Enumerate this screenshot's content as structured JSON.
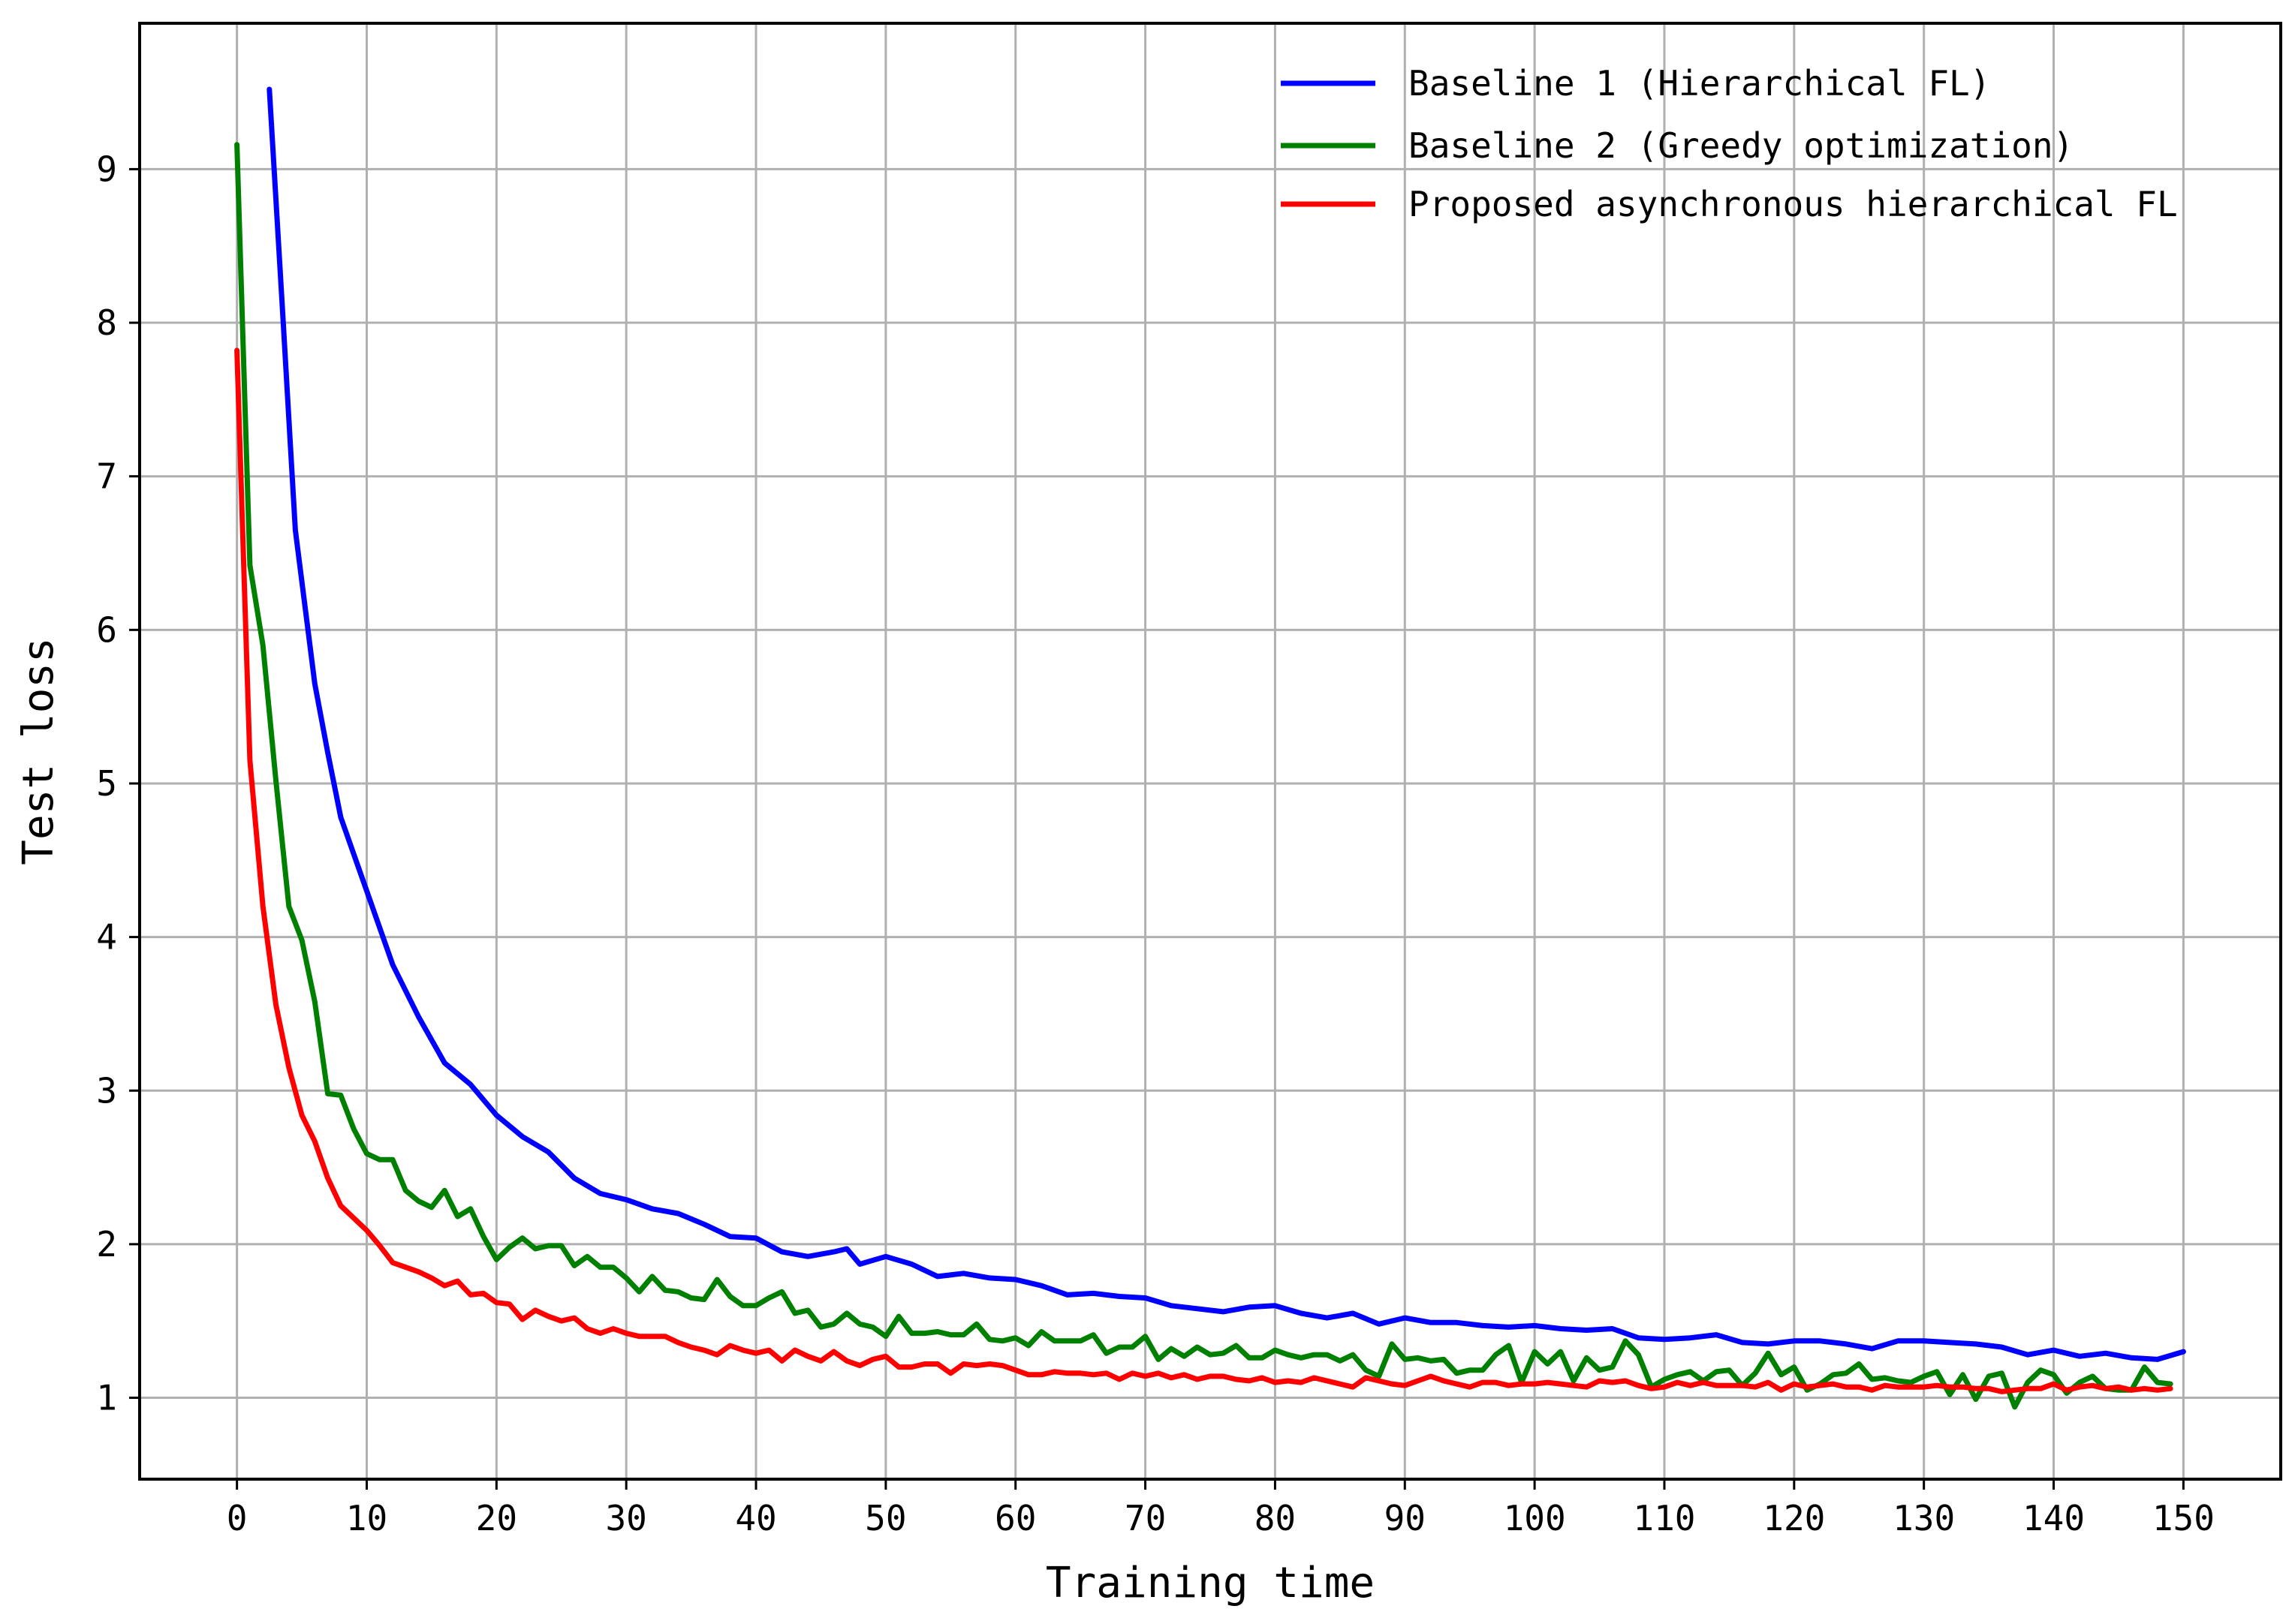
{
  "chart_data": {
    "type": "line",
    "xlabel": "Training time",
    "ylabel": "Test loss",
    "xlim": [
      -7.5,
      157.5
    ],
    "ylim": [
      0.47,
      9.95
    ],
    "xticks": [
      0,
      10,
      20,
      30,
      40,
      50,
      60,
      70,
      80,
      90,
      100,
      110,
      120,
      130,
      140,
      150
    ],
    "yticks": [
      1,
      2,
      3,
      4,
      5,
      6,
      7,
      8,
      9
    ],
    "grid": true,
    "legend_position": "top-right",
    "series": [
      {
        "name": "Baseline 1 (Hierarchical FL)",
        "color": "#0000ff",
        "x": [
          2.5,
          3.5,
          4.5,
          6,
          7,
          8,
          10,
          12,
          14,
          16,
          18,
          20,
          22,
          24,
          26,
          28,
          30,
          32,
          34,
          36,
          38,
          40,
          42,
          44,
          46,
          47,
          48,
          50,
          52,
          54,
          56,
          58,
          60,
          62,
          64,
          66,
          68,
          70,
          72,
          74,
          76,
          78,
          80,
          82,
          84,
          86,
          88,
          90,
          92,
          94,
          96,
          98,
          100,
          102,
          104,
          106,
          108,
          110,
          112,
          114,
          116,
          118,
          120,
          122,
          124,
          126,
          128,
          130,
          132,
          134,
          136,
          138,
          140,
          142,
          144,
          146,
          148,
          150
        ],
        "y": [
          9.52,
          8.1,
          6.65,
          5.65,
          5.2,
          4.78,
          4.3,
          3.82,
          3.48,
          3.18,
          3.04,
          2.84,
          2.7,
          2.6,
          2.43,
          2.33,
          2.29,
          2.23,
          2.2,
          2.13,
          2.05,
          2.04,
          1.95,
          1.92,
          1.95,
          1.97,
          1.87,
          1.92,
          1.87,
          1.79,
          1.81,
          1.78,
          1.77,
          1.73,
          1.67,
          1.68,
          1.66,
          1.65,
          1.6,
          1.58,
          1.56,
          1.59,
          1.6,
          1.55,
          1.52,
          1.55,
          1.48,
          1.52,
          1.49,
          1.49,
          1.47,
          1.46,
          1.47,
          1.45,
          1.44,
          1.45,
          1.39,
          1.38,
          1.39,
          1.41,
          1.36,
          1.35,
          1.37,
          1.37,
          1.35,
          1.32,
          1.37,
          1.37,
          1.36,
          1.35,
          1.33,
          1.28,
          1.31,
          1.27,
          1.29,
          1.26,
          1.25,
          1.3
        ]
      },
      {
        "name": "Baseline 2 (Greedy optimization)",
        "color": "#008000",
        "x": [
          0,
          1,
          2,
          3,
          4,
          5,
          6,
          7,
          8,
          9,
          10,
          11,
          12,
          13,
          14,
          15,
          16,
          17,
          18,
          19,
          20,
          21,
          22,
          23,
          24,
          25,
          26,
          27,
          28,
          29,
          30,
          31,
          32,
          33,
          34,
          35,
          36,
          37,
          38,
          39,
          40,
          41,
          42,
          43,
          44,
          45,
          46,
          47,
          48,
          49,
          50,
          51,
          52,
          53,
          54,
          55,
          56,
          57,
          58,
          59,
          60,
          61,
          62,
          63,
          64,
          65,
          66,
          67,
          68,
          69,
          70,
          71,
          72,
          73,
          74,
          75,
          76,
          77,
          78,
          79,
          80,
          81,
          82,
          83,
          84,
          85,
          86,
          87,
          88,
          89,
          90,
          91,
          92,
          93,
          94,
          95,
          96,
          97,
          98,
          99,
          100,
          101,
          102,
          103,
          104,
          105,
          106,
          107,
          108,
          109,
          110,
          111,
          112,
          113,
          114,
          115,
          116,
          117,
          118,
          119,
          120,
          121,
          122,
          123,
          124,
          125,
          126,
          127,
          128,
          129,
          130,
          131,
          132,
          133,
          134,
          135,
          136,
          137,
          138,
          139,
          140,
          141,
          142,
          143,
          144,
          145,
          146,
          147,
          148,
          149
        ],
        "y": [
          9.16,
          6.42,
          5.9,
          5.02,
          4.2,
          3.98,
          3.58,
          2.98,
          2.97,
          2.75,
          2.59,
          2.55,
          2.55,
          2.35,
          2.28,
          2.24,
          2.35,
          2.18,
          2.23,
          2.05,
          1.9,
          1.98,
          2.04,
          1.97,
          1.99,
          1.99,
          1.86,
          1.92,
          1.85,
          1.85,
          1.78,
          1.69,
          1.79,
          1.7,
          1.69,
          1.65,
          1.64,
          1.77,
          1.66,
          1.6,
          1.6,
          1.65,
          1.69,
          1.55,
          1.57,
          1.46,
          1.48,
          1.55,
          1.48,
          1.46,
          1.4,
          1.53,
          1.42,
          1.42,
          1.43,
          1.41,
          1.41,
          1.48,
          1.38,
          1.37,
          1.39,
          1.34,
          1.43,
          1.37,
          1.37,
          1.37,
          1.41,
          1.29,
          1.33,
          1.33,
          1.4,
          1.25,
          1.32,
          1.27,
          1.33,
          1.28,
          1.29,
          1.34,
          1.26,
          1.26,
          1.31,
          1.28,
          1.26,
          1.28,
          1.28,
          1.24,
          1.28,
          1.18,
          1.14,
          1.35,
          1.25,
          1.26,
          1.24,
          1.25,
          1.16,
          1.18,
          1.18,
          1.28,
          1.34,
          1.1,
          1.3,
          1.22,
          1.3,
          1.11,
          1.26,
          1.18,
          1.2,
          1.37,
          1.28,
          1.07,
          1.12,
          1.15,
          1.17,
          1.11,
          1.17,
          1.18,
          1.08,
          1.16,
          1.29,
          1.15,
          1.2,
          1.05,
          1.09,
          1.15,
          1.16,
          1.22,
          1.12,
          1.13,
          1.11,
          1.1,
          1.14,
          1.17,
          1.02,
          1.15,
          0.99,
          1.14,
          1.16,
          0.94,
          1.1,
          1.18,
          1.15,
          1.03,
          1.1,
          1.14,
          1.06,
          1.05,
          1.05,
          1.2,
          1.1,
          1.09
        ]
      },
      {
        "name": "Proposed asynchronous hierarchical FL",
        "color": "#ff0000",
        "x": [
          0,
          1,
          2,
          3,
          4,
          5,
          6,
          7,
          8,
          9,
          10,
          11,
          12,
          13,
          14,
          15,
          16,
          17,
          18,
          19,
          20,
          21,
          22,
          23,
          24,
          25,
          26,
          27,
          28,
          29,
          30,
          31,
          32,
          33,
          34,
          35,
          36,
          37,
          38,
          39,
          40,
          41,
          42,
          43,
          44,
          45,
          46,
          47,
          48,
          49,
          50,
          51,
          52,
          53,
          54,
          55,
          56,
          57,
          58,
          59,
          60,
          61,
          62,
          63,
          64,
          65,
          66,
          67,
          68,
          69,
          70,
          71,
          72,
          73,
          74,
          75,
          76,
          77,
          78,
          79,
          80,
          81,
          82,
          83,
          84,
          85,
          86,
          87,
          88,
          89,
          90,
          91,
          92,
          93,
          94,
          95,
          96,
          97,
          98,
          99,
          100,
          101,
          102,
          103,
          104,
          105,
          106,
          107,
          108,
          109,
          110,
          111,
          112,
          113,
          114,
          115,
          116,
          117,
          118,
          119,
          120,
          121,
          122,
          123,
          124,
          125,
          126,
          127,
          128,
          129,
          130,
          131,
          132,
          133,
          134,
          135,
          136,
          137,
          138,
          139,
          140,
          141,
          142,
          143,
          144,
          145,
          146,
          147,
          148,
          149
        ],
        "y": [
          7.82,
          5.15,
          4.2,
          3.56,
          3.15,
          2.84,
          2.67,
          2.43,
          2.25,
          2.17,
          2.09,
          1.99,
          1.88,
          1.85,
          1.82,
          1.78,
          1.73,
          1.76,
          1.67,
          1.68,
          1.62,
          1.61,
          1.51,
          1.57,
          1.53,
          1.5,
          1.52,
          1.45,
          1.42,
          1.45,
          1.42,
          1.4,
          1.4,
          1.4,
          1.36,
          1.33,
          1.31,
          1.28,
          1.34,
          1.31,
          1.29,
          1.31,
          1.24,
          1.31,
          1.27,
          1.24,
          1.3,
          1.24,
          1.21,
          1.25,
          1.27,
          1.2,
          1.2,
          1.22,
          1.22,
          1.16,
          1.22,
          1.21,
          1.22,
          1.21,
          1.18,
          1.15,
          1.15,
          1.17,
          1.16,
          1.16,
          1.15,
          1.16,
          1.12,
          1.16,
          1.14,
          1.16,
          1.13,
          1.15,
          1.12,
          1.14,
          1.14,
          1.12,
          1.11,
          1.13,
          1.1,
          1.11,
          1.1,
          1.13,
          1.11,
          1.09,
          1.07,
          1.13,
          1.11,
          1.09,
          1.08,
          1.11,
          1.14,
          1.11,
          1.09,
          1.07,
          1.1,
          1.1,
          1.08,
          1.09,
          1.09,
          1.1,
          1.09,
          1.08,
          1.07,
          1.11,
          1.1,
          1.11,
          1.08,
          1.06,
          1.07,
          1.1,
          1.08,
          1.1,
          1.08,
          1.08,
          1.08,
          1.07,
          1.1,
          1.05,
          1.09,
          1.07,
          1.08,
          1.09,
          1.07,
          1.07,
          1.05,
          1.08,
          1.07,
          1.07,
          1.07,
          1.08,
          1.07,
          1.07,
          1.06,
          1.06,
          1.04,
          1.05,
          1.06,
          1.06,
          1.09,
          1.05,
          1.07,
          1.08,
          1.06,
          1.07,
          1.05,
          1.06,
          1.05,
          1.06
        ]
      }
    ]
  }
}
